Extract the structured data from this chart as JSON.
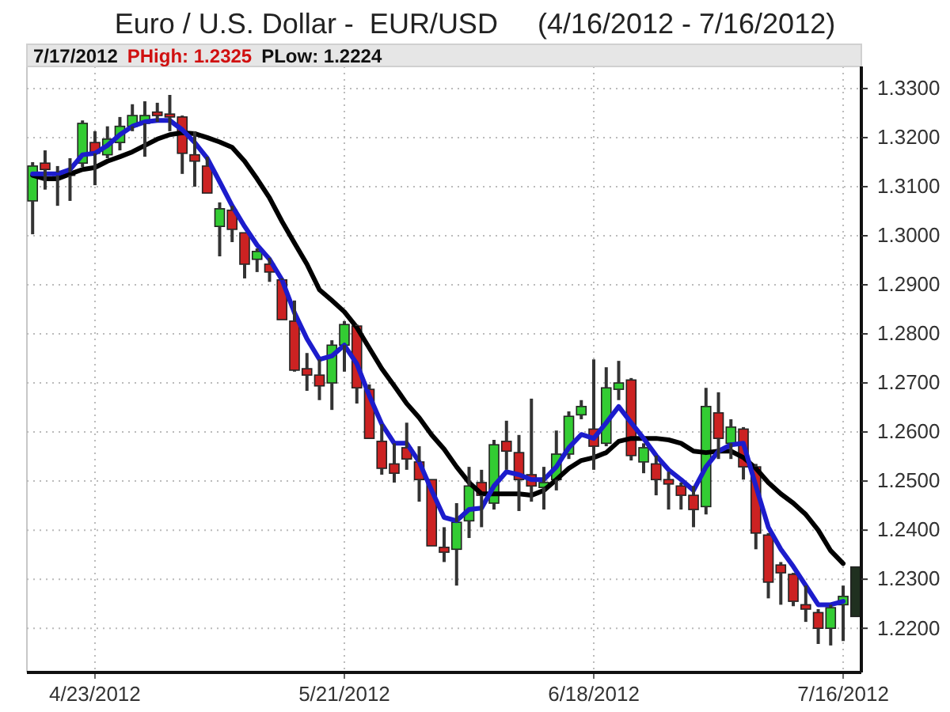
{
  "chart_data": {
    "type": "candlestick",
    "title": "Euro / U.S. Dollar -  EUR/USD     (4/16/2012 - 7/16/2012)",
    "annotations": [
      "7/17/2012",
      "PHigh: 1.2325",
      "PLow: 1.2224"
    ],
    "categories": [
      null,
      null,
      null,
      null,
      null,
      "4/23/2012",
      null,
      null,
      null,
      null,
      null,
      null,
      null,
      null,
      null,
      null,
      null,
      null,
      null,
      null,
      null,
      null,
      null,
      null,
      null,
      "5/21/2012",
      null,
      null,
      null,
      null,
      null,
      null,
      null,
      null,
      null,
      null,
      null,
      null,
      null,
      null,
      null,
      null,
      null,
      null,
      null,
      "6/18/2012",
      null,
      null,
      null,
      null,
      null,
      null,
      null,
      null,
      null,
      null,
      null,
      null,
      null,
      null,
      null,
      null,
      null,
      null,
      null,
      "7/16/2012",
      null
    ],
    "ohlc": [
      [
        1.3071,
        1.315,
        1.3003,
        1.3142
      ],
      [
        1.3148,
        1.3174,
        1.3094,
        1.3135
      ],
      [
        1.3129,
        1.3142,
        1.3061,
        1.3123
      ],
      [
        1.3123,
        1.3158,
        1.3071,
        1.3129
      ],
      [
        1.3148,
        1.3235,
        1.314,
        1.3229
      ],
      [
        1.319,
        1.3213,
        1.3103,
        1.3168
      ],
      [
        1.3165,
        1.3223,
        1.3158,
        1.3197
      ],
      [
        1.319,
        1.3242,
        1.3174,
        1.3223
      ],
      [
        1.3223,
        1.3268,
        1.3213,
        1.3245
      ],
      [
        1.3229,
        1.3274,
        1.3161,
        1.3245
      ],
      [
        1.3252,
        1.3271,
        1.3232,
        1.3245
      ],
      [
        1.3248,
        1.3287,
        1.3213,
        1.3242
      ],
      [
        1.3242,
        1.3245,
        1.3126,
        1.3168
      ],
      [
        1.3165,
        1.3213,
        1.31,
        1.3152
      ],
      [
        1.3142,
        1.3161,
        1.3087,
        1.3087
      ],
      [
        1.3019,
        1.3068,
        1.2958,
        1.3055
      ],
      [
        1.3052,
        1.3061,
        1.2987,
        1.3013
      ],
      [
        1.3006,
        1.3006,
        1.2913,
        1.2942
      ],
      [
        1.2952,
        1.2974,
        1.2926,
        1.2968
      ],
      [
        1.2942,
        1.2955,
        1.2906,
        1.2926
      ],
      [
        1.291,
        1.2913,
        1.2829,
        1.2829
      ],
      [
        1.2826,
        1.2868,
        1.2723,
        1.2726
      ],
      [
        1.2729,
        1.2761,
        1.2684,
        1.2716
      ],
      [
        1.2716,
        1.2748,
        1.2665,
        1.2694
      ],
      [
        1.27,
        1.2787,
        1.2645,
        1.2777
      ],
      [
        1.2777,
        1.2826,
        1.2723,
        1.2819
      ],
      [
        1.2816,
        1.2819,
        1.2658,
        1.269
      ],
      [
        1.2687,
        1.2697,
        1.2587,
        1.2587
      ],
      [
        1.2581,
        1.2616,
        1.2513,
        1.2526
      ],
      [
        1.2535,
        1.2577,
        1.2497,
        1.2516
      ],
      [
        1.2568,
        1.2619,
        1.2523,
        1.2545
      ],
      [
        1.2539,
        1.2571,
        1.2458,
        1.2503
      ],
      [
        1.2503,
        1.2503,
        1.2368,
        1.2368
      ],
      [
        1.2365,
        1.2406,
        1.2335,
        1.2355
      ],
      [
        1.2361,
        1.2455,
        1.2287,
        1.2416
      ],
      [
        1.2419,
        1.2529,
        1.2384,
        1.249
      ],
      [
        1.2497,
        1.2523,
        1.2406,
        1.2471
      ],
      [
        1.2455,
        1.2584,
        1.2442,
        1.2574
      ],
      [
        1.2581,
        1.2623,
        1.2523,
        1.2561
      ],
      [
        1.2558,
        1.2594,
        1.2439,
        1.2503
      ],
      [
        1.2513,
        1.2668,
        1.2458,
        1.249
      ],
      [
        1.2487,
        1.2529,
        1.2442,
        1.2497
      ],
      [
        1.2503,
        1.2603,
        1.2481,
        1.2555
      ],
      [
        1.2555,
        1.2642,
        1.2545,
        1.2632
      ],
      [
        1.2635,
        1.2665,
        1.2626,
        1.2652
      ],
      [
        1.2606,
        1.2748,
        1.2523,
        1.2571
      ],
      [
        1.2577,
        1.2732,
        1.2571,
        1.269
      ],
      [
        1.2687,
        1.2745,
        1.2665,
        1.27
      ],
      [
        1.2706,
        1.271,
        1.2542,
        1.2552
      ],
      [
        1.2539,
        1.2577,
        1.2516,
        1.2568
      ],
      [
        1.2535,
        1.2552,
        1.2471,
        1.2503
      ],
      [
        1.2503,
        1.2519,
        1.2442,
        1.2494
      ],
      [
        1.249,
        1.2497,
        1.2442,
        1.2471
      ],
      [
        1.2471,
        1.249,
        1.2406,
        1.2442
      ],
      [
        1.2448,
        1.269,
        1.2432,
        1.2652
      ],
      [
        1.2639,
        1.2681,
        1.2545,
        1.2587
      ],
      [
        1.2577,
        1.2626,
        1.2545,
        1.261
      ],
      [
        1.2606,
        1.261,
        1.2503,
        1.2529
      ],
      [
        1.2529,
        1.2535,
        1.2361,
        1.2394
      ],
      [
        1.239,
        1.2394,
        1.2261,
        1.2294
      ],
      [
        1.2329,
        1.2335,
        1.2248,
        1.2313
      ],
      [
        1.231,
        1.2313,
        1.2245,
        1.2255
      ],
      [
        1.2248,
        1.2287,
        1.2213,
        1.2239
      ],
      [
        1.2232,
        1.2239,
        1.2168,
        1.22
      ],
      [
        1.22,
        1.2248,
        1.2165,
        1.2242
      ],
      [
        1.2248,
        1.2287,
        1.2174,
        1.2265
      ],
      [
        1.2224,
        1.2325,
        1.2224,
        1.2325
      ]
    ],
    "colors": [
      "#33cc33",
      "#cc2222",
      "#cc2222",
      "#33cc33",
      "#33cc33",
      "#cc2222",
      "#33cc33",
      "#33cc33",
      "#33cc33",
      "#33cc33",
      "#cc2222",
      "#cc2222",
      "#cc2222",
      "#cc2222",
      "#cc2222",
      "#33cc33",
      "#cc2222",
      "#cc2222",
      "#33cc33",
      "#cc2222",
      "#cc2222",
      "#cc2222",
      "#cc2222",
      "#cc2222",
      "#33cc33",
      "#33cc33",
      "#cc2222",
      "#cc2222",
      "#cc2222",
      "#cc2222",
      "#cc2222",
      "#cc2222",
      "#cc2222",
      "#cc2222",
      "#33cc33",
      "#33cc33",
      "#cc2222",
      "#33cc33",
      "#cc2222",
      "#cc2222",
      "#cc2222",
      "#33cc33",
      "#33cc33",
      "#33cc33",
      "#33cc33",
      "#cc2222",
      "#33cc33",
      "#33cc33",
      "#cc2222",
      "#33cc33",
      "#cc2222",
      "#cc2222",
      "#cc2222",
      "#cc2222",
      "#33cc33",
      "#cc2222",
      "#33cc33",
      "#cc2222",
      "#cc2222",
      "#cc2222",
      "#cc2222",
      "#cc2222",
      "#cc2222",
      "#cc2222",
      "#33cc33",
      "#33cc33",
      "#203020"
    ],
    "series": [
      {
        "type": "line",
        "color": "#000000",
        "values": [
          1.3123,
          1.3116,
          1.3116,
          1.3126,
          1.3135,
          1.3139,
          1.3152,
          1.3161,
          1.3171,
          1.3184,
          1.3197,
          1.3206,
          1.321,
          1.3208,
          1.32,
          1.3191,
          1.318,
          1.3152,
          1.3116,
          1.3077,
          1.3029,
          1.2985,
          1.2942,
          1.289,
          1.2868,
          1.2845,
          1.2813,
          1.2771,
          1.2729,
          1.2694,
          1.2658,
          1.2629,
          1.2594,
          1.2565,
          1.2529,
          1.2497,
          1.2474,
          1.2474,
          1.2474,
          1.2474,
          1.2471,
          1.2481,
          1.2503,
          1.2526,
          1.2542,
          1.2548,
          1.2558,
          1.2581,
          1.2587,
          1.2587,
          1.2587,
          1.2584,
          1.2577,
          1.2561,
          1.2558,
          1.2561,
          1.2561,
          1.2548,
          1.2526,
          1.2497,
          1.2474,
          1.2455,
          1.2432,
          1.24,
          1.2358,
          1.2332,
          null
        ]
      },
      {
        "type": "line",
        "color": "#1c1ccc",
        "values": [
          1.3126,
          1.3126,
          1.3126,
          1.3135,
          1.3165,
          1.3168,
          1.3184,
          1.3206,
          1.3223,
          1.3232,
          1.3235,
          1.3235,
          1.3216,
          1.319,
          1.3158,
          1.311,
          1.3061,
          1.3019,
          1.2981,
          1.2952,
          1.291,
          1.2843,
          1.279,
          1.2748,
          1.2755,
          1.2777,
          1.2739,
          1.2674,
          1.2616,
          1.2577,
          1.2577,
          1.2539,
          1.2481,
          1.2426,
          1.2419,
          1.2442,
          1.2445,
          1.249,
          1.2519,
          1.2513,
          1.2503,
          1.2503,
          1.2529,
          1.2568,
          1.2595,
          1.2587,
          1.2619,
          1.2652,
          1.2619,
          1.2587,
          1.2552,
          1.2523,
          1.2503,
          1.2481,
          1.2529,
          1.2561,
          1.2574,
          1.2577,
          1.249,
          1.2406,
          1.2361,
          1.2326,
          1.2287,
          1.2248,
          1.2248,
          1.2255,
          null
        ]
      }
    ],
    "ylim": [
      1.211,
      1.3345
    ],
    "yticks": [
      {
        "value": 1.22,
        "label": "1.2200"
      },
      {
        "value": 1.23,
        "label": "1.2300"
      },
      {
        "value": 1.24,
        "label": "1.2400"
      },
      {
        "value": 1.25,
        "label": "1.2500"
      },
      {
        "value": 1.26,
        "label": "1.2600"
      },
      {
        "value": 1.27,
        "label": "1.2700"
      },
      {
        "value": 1.28,
        "label": "1.2800"
      },
      {
        "value": 1.29,
        "label": "1.2900"
      },
      {
        "value": 1.3,
        "label": "1.3000"
      },
      {
        "value": 1.31,
        "label": "1.3100"
      },
      {
        "value": 1.32,
        "label": "1.3200"
      },
      {
        "value": 1.33,
        "label": "1.3300"
      }
    ],
    "grid": true
  }
}
